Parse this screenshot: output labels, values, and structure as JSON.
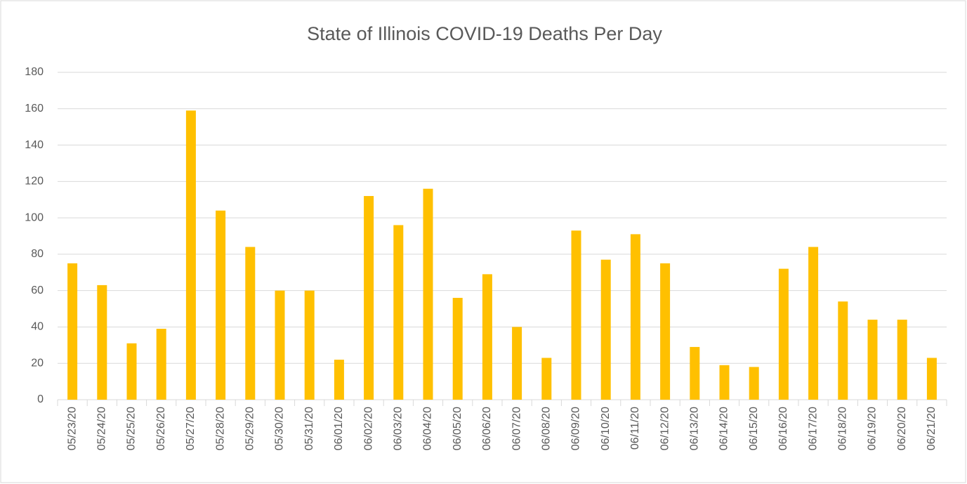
{
  "chart_data": {
    "type": "bar",
    "title": "State of Illinois COVID-19 Deaths Per Day",
    "categories": [
      "05/23/20",
      "05/24/20",
      "05/25/20",
      "05/26/20",
      "05/27/20",
      "05/28/20",
      "05/29/20",
      "05/30/20",
      "05/31/20",
      "06/01/20",
      "06/02/20",
      "06/03/20",
      "06/04/20",
      "06/05/20",
      "06/06/20",
      "06/07/20",
      "06/08/20",
      "06/09/20",
      "06/10/20",
      "06/11/20",
      "06/12/20",
      "06/13/20",
      "06/14/20",
      "06/15/20",
      "06/16/20",
      "06/17/20",
      "06/18/20",
      "06/19/20",
      "06/20/20",
      "06/21/20"
    ],
    "values": [
      75,
      63,
      31,
      39,
      159,
      104,
      84,
      60,
      60,
      22,
      112,
      96,
      116,
      56,
      69,
      40,
      23,
      93,
      77,
      91,
      75,
      29,
      19,
      18,
      72,
      84,
      54,
      44,
      44,
      23
    ],
    "color": "#ffc000",
    "ylim": [
      0,
      180
    ],
    "yticks": [
      0,
      20,
      40,
      60,
      80,
      100,
      120,
      140,
      160,
      180
    ],
    "grid": true
  }
}
